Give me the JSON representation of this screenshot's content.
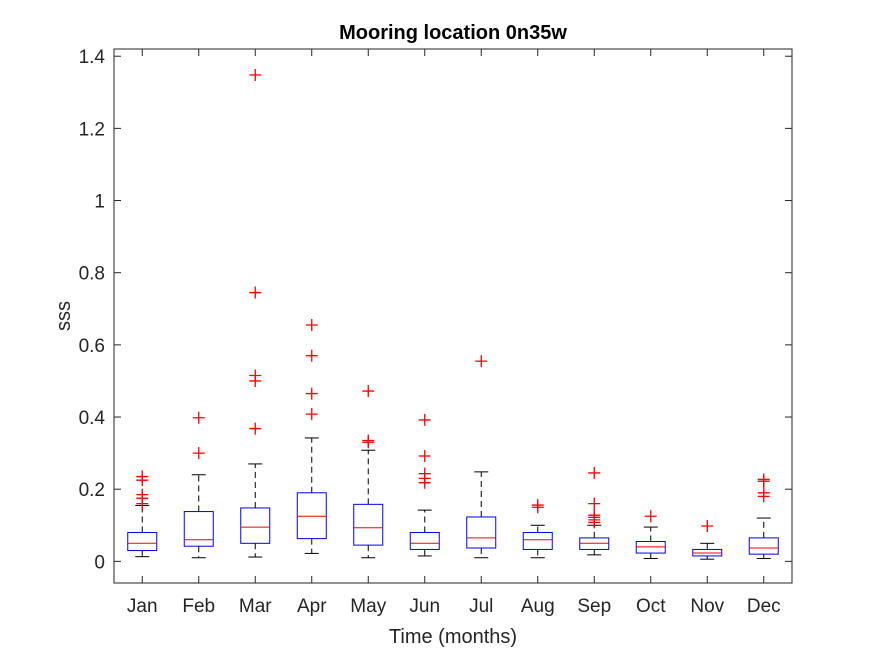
{
  "chart_data": {
    "type": "boxplot",
    "title": "Mooring location 0n35w",
    "xlabel": "Time (months)",
    "ylabel": "sss",
    "ylim": [
      -0.06,
      1.42
    ],
    "yticks": [
      0,
      0.2,
      0.4,
      0.6,
      0.8,
      1,
      1.2,
      1.4
    ],
    "ytick_labels": [
      "0",
      "0.2",
      "0.4",
      "0.6",
      "0.8",
      "1",
      "1.2",
      "1.4"
    ],
    "categories": [
      "Jan",
      "Feb",
      "Mar",
      "Apr",
      "May",
      "Jun",
      "Jul",
      "Aug",
      "Sep",
      "Oct",
      "Nov",
      "Dec"
    ],
    "grid": false,
    "colors": {
      "box": "#0000ff",
      "median": "#ff0000",
      "whisker": "#000000",
      "outlier": "#ff0000",
      "axis": "#262626"
    },
    "boxes": [
      {
        "category": "Jan",
        "whisker_low": 0.013,
        "q1": 0.03,
        "median": 0.05,
        "q3": 0.08,
        "whisker_high": 0.155,
        "outliers": [
          0.16,
          0.175,
          0.185,
          0.225,
          0.235
        ]
      },
      {
        "category": "Feb",
        "whisker_low": 0.01,
        "q1": 0.042,
        "median": 0.06,
        "q3": 0.138,
        "whisker_high": 0.24,
        "outliers": [
          0.3,
          0.398
        ]
      },
      {
        "category": "Mar",
        "whisker_low": 0.012,
        "q1": 0.05,
        "median": 0.095,
        "q3": 0.148,
        "whisker_high": 0.27,
        "outliers": [
          0.368,
          0.5,
          0.515,
          0.745,
          1.348
        ]
      },
      {
        "category": "Apr",
        "whisker_low": 0.022,
        "q1": 0.063,
        "median": 0.125,
        "q3": 0.19,
        "whisker_high": 0.342,
        "outliers": [
          0.408,
          0.465,
          0.57,
          0.655
        ]
      },
      {
        "category": "May",
        "whisker_low": 0.01,
        "q1": 0.045,
        "median": 0.093,
        "q3": 0.158,
        "whisker_high": 0.308,
        "outliers": [
          0.33,
          0.335,
          0.472
        ]
      },
      {
        "category": "Jun",
        "whisker_low": 0.015,
        "q1": 0.033,
        "median": 0.05,
        "q3": 0.08,
        "whisker_high": 0.142,
        "outliers": [
          0.218,
          0.23,
          0.243,
          0.292,
          0.392
        ]
      },
      {
        "category": "Jul",
        "whisker_low": 0.01,
        "q1": 0.037,
        "median": 0.065,
        "q3": 0.123,
        "whisker_high": 0.248,
        "outliers": [
          0.555
        ]
      },
      {
        "category": "Aug",
        "whisker_low": 0.01,
        "q1": 0.033,
        "median": 0.06,
        "q3": 0.08,
        "whisker_high": 0.1,
        "outliers": [
          0.15,
          0.156
        ]
      },
      {
        "category": "Sep",
        "whisker_low": 0.018,
        "q1": 0.033,
        "median": 0.05,
        "q3": 0.065,
        "whisker_high": 0.1,
        "outliers": [
          0.108,
          0.115,
          0.122,
          0.128,
          0.16,
          0.245
        ]
      },
      {
        "category": "Oct",
        "whisker_low": 0.008,
        "q1": 0.023,
        "median": 0.04,
        "q3": 0.055,
        "whisker_high": 0.095,
        "outliers": [
          0.125
        ]
      },
      {
        "category": "Nov",
        "whisker_low": 0.006,
        "q1": 0.015,
        "median": 0.023,
        "q3": 0.033,
        "whisker_high": 0.05,
        "outliers": [
          0.098
        ]
      },
      {
        "category": "Dec",
        "whisker_low": 0.008,
        "q1": 0.02,
        "median": 0.037,
        "q3": 0.065,
        "whisker_high": 0.12,
        "outliers": [
          0.18,
          0.19,
          0.222,
          0.227
        ]
      }
    ]
  }
}
